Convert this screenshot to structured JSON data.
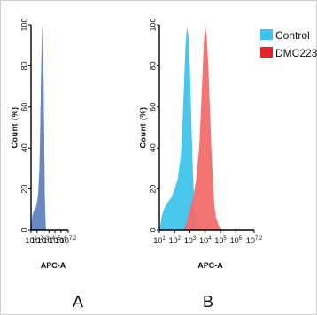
{
  "chart_data": [
    {
      "type": "area",
      "panel_label": "A",
      "xscale": "log",
      "xlim": [
        1,
        7.2
      ],
      "ylim": [
        0,
        100
      ],
      "xlabel": "APC-A",
      "ylabel": "Count (%)",
      "xtick_labels": [
        {
          "base": "10",
          "exp": "1"
        },
        {
          "base": "10",
          "exp": "2"
        },
        {
          "base": "10",
          "exp": "3"
        },
        {
          "base": "10",
          "exp": "4"
        },
        {
          "base": "10",
          "exp": "5"
        },
        {
          "base": "10",
          "exp": "6"
        },
        {
          "base": "10",
          "exp": "7.2"
        }
      ],
      "ytick_labels": [
        "0",
        "20",
        "40",
        "60",
        "80",
        "100"
      ],
      "x": [
        1.0,
        1.2,
        1.4,
        1.6,
        1.8,
        2.0,
        2.2,
        2.4,
        2.5,
        2.6,
        2.7,
        2.8,
        2.9,
        3.0,
        3.1,
        3.2,
        3.3,
        3.4,
        3.5
      ],
      "series": [
        {
          "color": "#ee3a3a",
          "values": [
            0,
            5,
            8,
            8,
            10,
            12,
            16,
            28,
            42,
            58,
            78,
            90,
            99,
            92,
            70,
            40,
            15,
            4,
            0
          ]
        },
        {
          "color": "#5a8fd0",
          "values": [
            0,
            7,
            9,
            10,
            11,
            14,
            18,
            30,
            44,
            60,
            80,
            92,
            100,
            93,
            72,
            42,
            16,
            4,
            0
          ]
        }
      ]
    },
    {
      "type": "area",
      "panel_label": "B",
      "xscale": "log",
      "xlim": [
        1,
        7.2
      ],
      "ylim": [
        0,
        100
      ],
      "xlabel": "APC-A",
      "ylabel": "Count (%)",
      "xtick_labels": [
        {
          "base": "10",
          "exp": "1"
        },
        {
          "base": "10",
          "exp": "2"
        },
        {
          "base": "10",
          "exp": "3"
        },
        {
          "base": "10",
          "exp": "4"
        },
        {
          "base": "10",
          "exp": "5"
        },
        {
          "base": "10",
          "exp": "6"
        },
        {
          "base": "10",
          "exp": "7.2"
        }
      ],
      "ytick_labels": [
        "0",
        "20",
        "40",
        "60",
        "80",
        "100"
      ],
      "legend": {
        "placement": "right",
        "entries": [
          {
            "label": "Control",
            "color": "#3ec3ea"
          },
          {
            "label": "DMC223",
            "color": "#e8222a"
          }
        ]
      },
      "series": [
        {
          "name": "Control",
          "color": "#3ec3ea",
          "x": [
            1.0,
            1.2,
            1.4,
            1.6,
            1.8,
            2.0,
            2.2,
            2.4,
            2.5,
            2.6,
            2.7,
            2.8,
            2.9,
            3.0,
            3.1,
            3.2,
            3.3,
            3.4,
            3.5
          ],
          "values": [
            0,
            8,
            12,
            14,
            16,
            20,
            25,
            36,
            50,
            68,
            88,
            99,
            95,
            78,
            52,
            26,
            10,
            3,
            0
          ]
        },
        {
          "name": "DMC223",
          "color": "#f36d6d",
          "x": [
            2.6,
            2.8,
            3.0,
            3.2,
            3.4,
            3.6,
            3.7,
            3.8,
            3.9,
            4.0,
            4.1,
            4.2,
            4.3,
            4.4,
            4.5,
            4.6,
            4.7,
            4.9,
            5.1
          ],
          "values": [
            0,
            4,
            10,
            16,
            24,
            40,
            55,
            72,
            90,
            100,
            94,
            80,
            60,
            40,
            24,
            12,
            6,
            2,
            0
          ]
        }
      ]
    }
  ]
}
